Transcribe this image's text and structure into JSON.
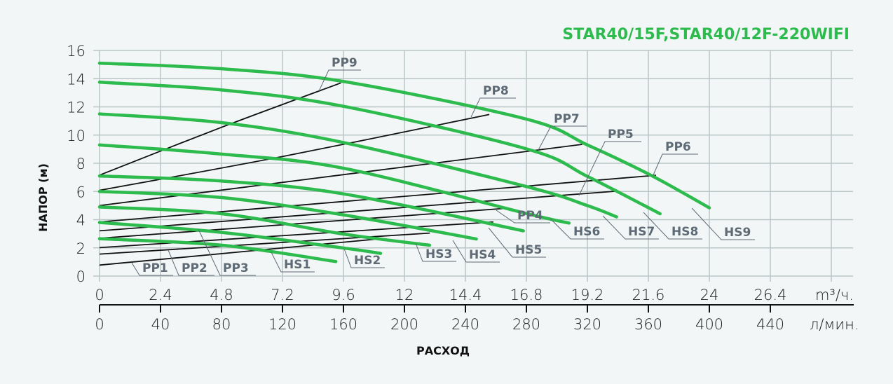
{
  "chart_data": {
    "type": "line",
    "title": "STAR40/15F,STAR40/12F-220WIFI",
    "xlabel": "РАСХОД",
    "ylabel": "НАПОР (м)",
    "x_unit_primary": "m³/ч.",
    "x_unit_secondary": "л/мин.",
    "xlim": [
      0,
      28.8
    ],
    "ylim": [
      0,
      16
    ],
    "grid": true,
    "y_ticks": [
      "0",
      "2",
      "4",
      "6",
      "8",
      "10",
      "12",
      "14",
      "16"
    ],
    "x_ticks_primary": [
      "0",
      "2.4",
      "4.8",
      "7.2",
      "9.6",
      "12",
      "14.4",
      "16.8",
      "19.2",
      "21.6",
      "24",
      "26.4"
    ],
    "x_ticks_secondary": [
      "0",
      "40",
      "80",
      "120",
      "160",
      "200",
      "240",
      "280",
      "320",
      "360",
      "400",
      "440"
    ],
    "colors": {
      "pump_curve": "#2dbb4e",
      "system_curve": "#111111",
      "title": "#2dbb4e"
    },
    "pump_curves": [
      {
        "name": "HS1",
        "points": [
          [
            0,
            2.65
          ],
          [
            4.8,
            2.19
          ],
          [
            9.3,
            1.03
          ]
        ]
      },
      {
        "name": "HS2",
        "points": [
          [
            0,
            3.8
          ],
          [
            4.8,
            3.1
          ],
          [
            9.6,
            1.99
          ],
          [
            11.06,
            1.61
          ]
        ]
      },
      {
        "name": "HS3",
        "points": [
          [
            0,
            4.9
          ],
          [
            4.8,
            4.42
          ],
          [
            9.6,
            2.98
          ],
          [
            12.99,
            2.19
          ]
        ]
      },
      {
        "name": "HS4",
        "points": [
          [
            0,
            6.0
          ],
          [
            4.8,
            5.57
          ],
          [
            9.6,
            4.34
          ],
          [
            14.83,
            2.63
          ]
        ]
      },
      {
        "name": "HS5",
        "points": [
          [
            0,
            7.1
          ],
          [
            4.8,
            6.74
          ],
          [
            9.6,
            5.83
          ],
          [
            16.68,
            3.21
          ]
        ]
      },
      {
        "name": "HS6",
        "points": [
          [
            0,
            9.3
          ],
          [
            4.8,
            8.65
          ],
          [
            9.6,
            7.65
          ],
          [
            16.84,
            4.42
          ],
          [
            18.48,
            3.76
          ]
        ]
      },
      {
        "name": "HS7",
        "points": [
          [
            0,
            11.5
          ],
          [
            4.8,
            10.88
          ],
          [
            9.6,
            9.47
          ],
          [
            16.84,
            6.33
          ],
          [
            19.2,
            5.0
          ],
          [
            20.35,
            4.2
          ]
        ]
      },
      {
        "name": "HS8",
        "points": [
          [
            0,
            13.75
          ],
          [
            4.8,
            13.2
          ],
          [
            9.6,
            12.04
          ],
          [
            16.84,
            9.0
          ],
          [
            19.2,
            7.07
          ],
          [
            22.06,
            4.42
          ]
        ]
      },
      {
        "name": "HS9",
        "points": [
          [
            0,
            15.1
          ],
          [
            4.8,
            14.7
          ],
          [
            9.6,
            13.8
          ],
          [
            16.8,
            11.13
          ],
          [
            19.2,
            9.3
          ],
          [
            21.7,
            7.15
          ],
          [
            24,
            4.84
          ]
        ]
      }
    ],
    "system_curves": [
      {
        "name": "PP1",
        "points": [
          [
            0,
            0.78
          ],
          [
            11.06,
            2.65
          ]
        ]
      },
      {
        "name": "PP2",
        "points": [
          [
            0,
            1.56
          ],
          [
            13.0,
            3.05
          ]
        ]
      },
      {
        "name": "PP3",
        "points": [
          [
            0,
            2.02
          ],
          [
            15.5,
            3.84
          ]
        ]
      },
      {
        "name": "PP4",
        "points": [
          [
            0,
            2.68
          ],
          [
            16.1,
            4.82
          ]
        ]
      },
      {
        "name": "PP5",
        "points": [
          [
            0,
            3.21
          ],
          [
            20.4,
            6.03
          ]
        ]
      },
      {
        "name": "PP6",
        "points": [
          [
            0,
            3.84
          ],
          [
            21.9,
            7.15
          ]
        ]
      },
      {
        "name": "PP7",
        "points": [
          [
            0,
            5.0
          ],
          [
            19.0,
            9.34
          ]
        ]
      },
      {
        "name": "PP8",
        "points": [
          [
            0,
            6.08
          ],
          [
            7.2,
            8.48
          ],
          [
            15.34,
            11.46
          ]
        ]
      },
      {
        "name": "PP9",
        "points": [
          [
            0,
            7.16
          ],
          [
            4.8,
            10.55
          ],
          [
            9.5,
            13.7
          ]
        ]
      }
    ]
  }
}
